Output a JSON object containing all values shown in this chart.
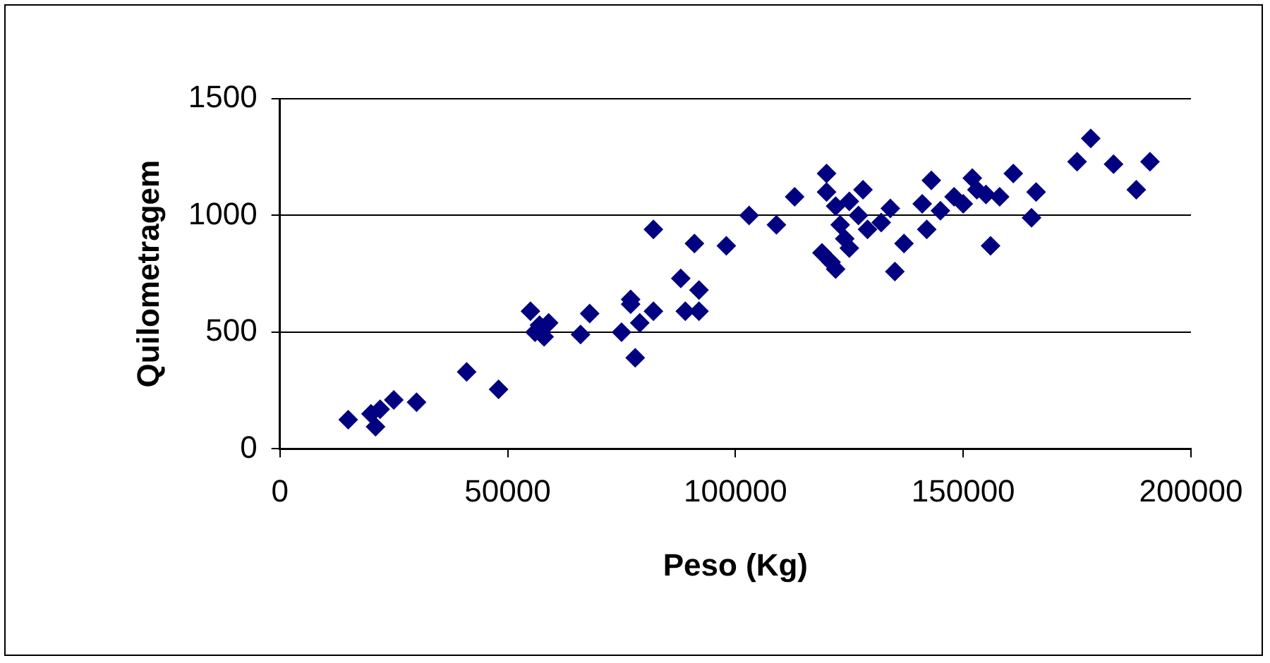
{
  "chart_data": {
    "type": "scatter",
    "xlabel": "Peso (Kg)",
    "ylabel": "Quilometragem",
    "marker": "diamond",
    "grid": "y",
    "legend": false,
    "xlim": [
      0,
      200000
    ],
    "xticks": [
      0,
      50000,
      100000,
      150000,
      200000
    ],
    "ylim": [
      0,
      1500
    ],
    "yticks": [
      0,
      500,
      1000,
      1500
    ],
    "series": [
      {
        "color": "#000080",
        "x": [
          15000,
          20000,
          21000,
          22000,
          25000,
          30000,
          41000,
          48000,
          55000,
          57000,
          56000,
          58000,
          59000,
          66000,
          68000,
          75000,
          77000,
          77000,
          78000,
          79000,
          82000,
          82000,
          88000,
          89000,
          91000,
          92000,
          92000,
          98000,
          103000,
          109000,
          113000,
          119000,
          120000,
          120000,
          121000,
          122000,
          122000,
          123000,
          124000,
          125000,
          125000,
          127000,
          128000,
          129000,
          132000,
          134000,
          135000,
          137000,
          141000,
          142000,
          143000,
          145000,
          148000,
          150000,
          152000,
          153000,
          155000,
          156000,
          158000,
          161000,
          165000,
          166000,
          175000,
          178000,
          183000,
          188000,
          191000
        ],
        "values": [
          125,
          150,
          95,
          170,
          210,
          200,
          330,
          255,
          590,
          530,
          500,
          480,
          540,
          490,
          580,
          500,
          640,
          620,
          390,
          540,
          590,
          940,
          730,
          590,
          880,
          590,
          680,
          870,
          1000,
          960,
          1080,
          840,
          1180,
          1100,
          800,
          770,
          1040,
          960,
          900,
          860,
          1060,
          1000,
          1110,
          940,
          970,
          1030,
          760,
          880,
          1050,
          940,
          1150,
          1020,
          1080,
          1050,
          1160,
          1110,
          1090,
          870,
          1080,
          1180,
          990,
          1100,
          1230,
          1330,
          1220,
          1110,
          1230
        ]
      }
    ]
  }
}
